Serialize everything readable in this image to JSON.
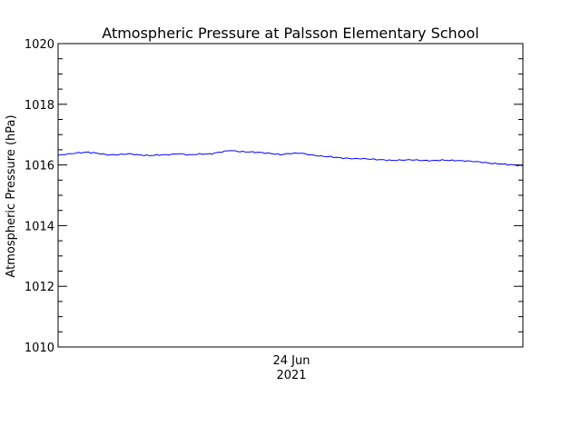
{
  "chart_data": {
    "type": "line",
    "title": "Atmospheric Pressure at Palsson Elementary School",
    "xlabel": "",
    "ylabel": "Atmospheric Pressure (hPa)",
    "ylim": [
      1010,
      1020
    ],
    "y_ticks": [
      1010,
      1012,
      1014,
      1016,
      1018,
      1020
    ],
    "y_tick_labels": [
      "1010",
      "1012",
      "1014",
      "1016",
      "1018",
      "1020"
    ],
    "x_tick_labels": [
      {
        "line1": "24 Jun",
        "line2": "2021"
      }
    ],
    "grid": false,
    "series": [
      {
        "color": "#0000ff",
        "values": [
          1016.32,
          1016.36,
          1016.4,
          1016.42,
          1016.38,
          1016.33,
          1016.34,
          1016.37,
          1016.33,
          1016.31,
          1016.33,
          1016.34,
          1016.37,
          1016.33,
          1016.36,
          1016.36,
          1016.42,
          1016.48,
          1016.44,
          1016.43,
          1016.41,
          1016.38,
          1016.34,
          1016.38,
          1016.39,
          1016.33,
          1016.29,
          1016.27,
          1016.23,
          1016.21,
          1016.21,
          1016.19,
          1016.17,
          1016.15,
          1016.16,
          1016.17,
          1016.15,
          1016.14,
          1016.16,
          1016.15,
          1016.14,
          1016.12,
          1016.09,
          1016.05,
          1016.03,
          1016.0,
          1015.97
        ]
      }
    ],
    "colors": {
      "axes": "#000000",
      "line": "#0000ff",
      "background": "#ffffff"
    }
  }
}
